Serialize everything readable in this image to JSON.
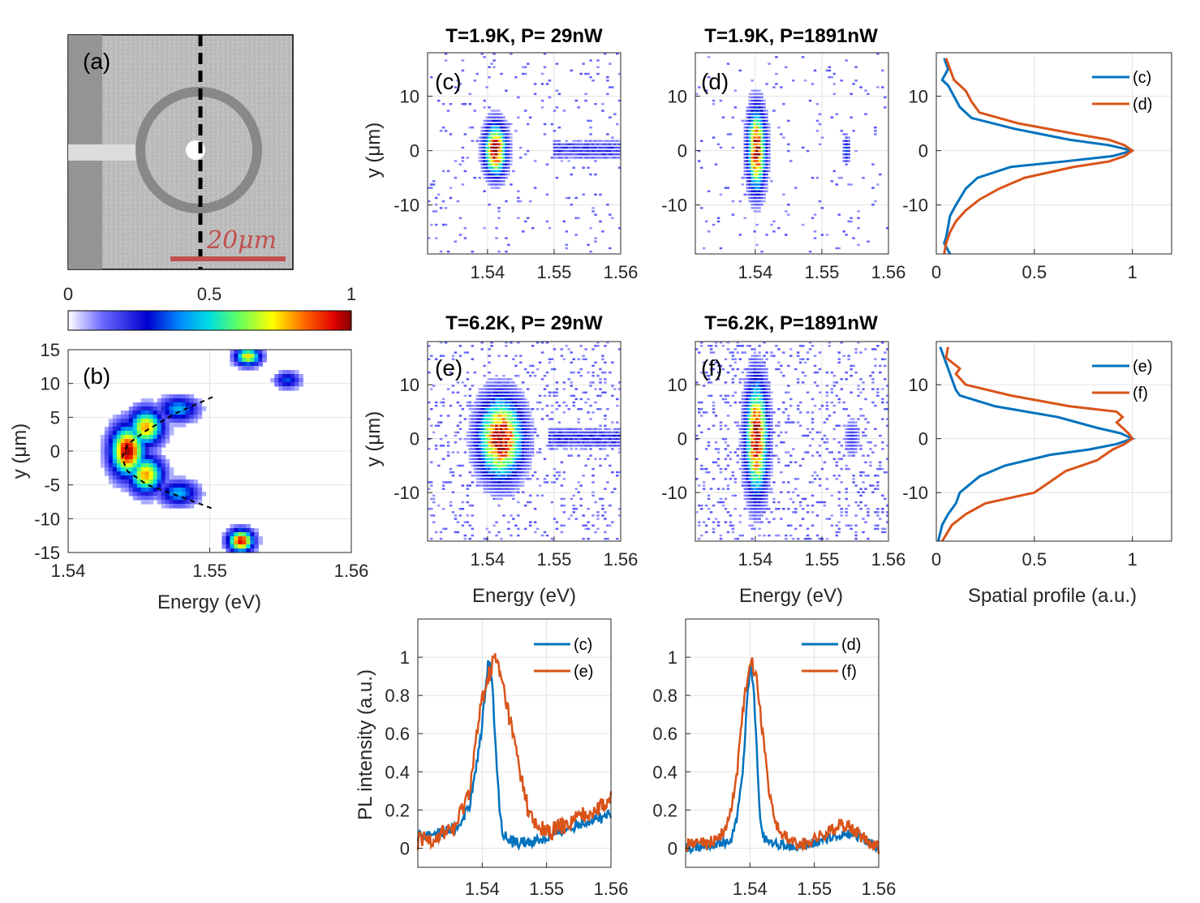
{
  "chart_data": [
    {
      "panel": "(a)",
      "type": "image",
      "label": "(a)",
      "scale_bar_text": "20μm"
    },
    {
      "panel": "colorbar",
      "type": "colorbar",
      "ticks": [
        "0",
        "0.5",
        "1"
      ],
      "range": [
        0,
        1
      ]
    },
    {
      "panel": "(b)",
      "type": "heatmap",
      "label": "(b)",
      "xlabel": "Energy (eV)",
      "ylabel": "y (μm)",
      "xlim": [
        1.54,
        1.56
      ],
      "ylim": [
        -15,
        15
      ],
      "xticks": [
        "1.54",
        "1.55",
        "1.56"
      ],
      "yticks": [
        "15",
        "10",
        "5",
        "0",
        "-5",
        "-10",
        "-15"
      ],
      "dashed_fit": {
        "x": [
          1.5502,
          1.5475,
          1.5455,
          1.5442,
          1.5438,
          1.5442,
          1.5456,
          1.5476,
          1.5502
        ],
        "y": [
          8,
          5.5,
          3,
          1,
          -1,
          -3,
          -5,
          -6.5,
          -8.5
        ]
      },
      "blobs": [
        {
          "x": 1.5442,
          "y": 0,
          "sx": 0.0008,
          "sy": 2.5,
          "a": 1.0
        },
        {
          "x": 1.5455,
          "y": 3.5,
          "sx": 0.0008,
          "sy": 1.8,
          "a": 0.8
        },
        {
          "x": 1.5455,
          "y": -3.5,
          "sx": 0.0008,
          "sy": 1.8,
          "a": 0.8
        },
        {
          "x": 1.5478,
          "y": 6.2,
          "sx": 0.0009,
          "sy": 1.2,
          "a": 0.45
        },
        {
          "x": 1.5478,
          "y": -6.2,
          "sx": 0.0009,
          "sy": 1.2,
          "a": 0.45
        },
        {
          "x": 1.5527,
          "y": 14,
          "sx": 0.0006,
          "sy": 0.9,
          "a": 0.75
        },
        {
          "x": 1.5555,
          "y": 10.5,
          "sx": 0.0006,
          "sy": 0.8,
          "a": 0.35
        },
        {
          "x": 1.5522,
          "y": -13.3,
          "sx": 0.0006,
          "sy": 1.1,
          "a": 0.95
        }
      ]
    },
    {
      "panel": "(c)",
      "type": "heatmap",
      "title": "T=1.9K, P=  29nW",
      "label": "(c)",
      "xlim": [
        1.531,
        1.56
      ],
      "ylim": [
        -19,
        18
      ],
      "xticks": [
        "1.54",
        "1.55",
        "1.56"
      ],
      "yticks": [
        "10",
        "0",
        "-10"
      ],
      "ylabel": "y (μm)",
      "center": [
        1.5412,
        0
      ],
      "width_e": 0.0011,
      "width_y": 3.2
    },
    {
      "panel": "(d)",
      "type": "heatmap",
      "title": "T=1.9K, P=1891nW",
      "label": "(d)",
      "xlim": [
        1.531,
        1.56
      ],
      "ylim": [
        -19,
        18
      ],
      "xticks": [
        "1.54",
        "1.55",
        "1.56"
      ],
      "yticks": [
        "10",
        "0",
        "-10"
      ],
      "center": [
        1.5402,
        0
      ],
      "width_e": 0.0009,
      "width_y": 5.0
    },
    {
      "panel": "(e)",
      "type": "heatmap",
      "title": "T=6.2K, P=  29nW",
      "label": "(e)",
      "xlim": [
        1.531,
        1.56
      ],
      "ylim": [
        -19,
        18
      ],
      "xticks": [
        "1.54",
        "1.55",
        "1.56"
      ],
      "yticks": [
        "10",
        "0",
        "-10"
      ],
      "xlabel": "Energy (eV)",
      "ylabel": "y (μm)",
      "center": [
        1.542,
        0
      ],
      "width_e": 0.0022,
      "width_y": 5.0
    },
    {
      "panel": "(f)",
      "type": "heatmap",
      "title": "T=6.2K, P=1891nW",
      "label": "(f)",
      "xlim": [
        1.531,
        1.56
      ],
      "ylim": [
        -19,
        18
      ],
      "xticks": [
        "1.54",
        "1.55",
        "1.56"
      ],
      "yticks": [
        "10",
        "0",
        "-10"
      ],
      "xlabel": "Energy (eV)",
      "center": [
        1.5402,
        0
      ],
      "width_e": 0.0011,
      "width_y": 7.0
    },
    {
      "panel": "spatial-top",
      "type": "line",
      "xlim": [
        0,
        1.2
      ],
      "ylim": [
        -19,
        18
      ],
      "xticks": [
        "0",
        "0.5",
        "1"
      ],
      "yticks": [
        "10",
        "0",
        "-10"
      ],
      "series": [
        {
          "name": "(c)",
          "color": "#0072BD",
          "y": [
            17,
            15,
            13,
            12,
            10,
            8,
            6,
            4,
            2,
            1,
            0,
            -1,
            -2,
            -3,
            -5,
            -7,
            -10,
            -12,
            -14,
            -16,
            -17,
            -19
          ],
          "x": [
            0.04,
            0.06,
            0.03,
            0.06,
            0.09,
            0.12,
            0.18,
            0.4,
            0.68,
            0.88,
            1.0,
            0.9,
            0.65,
            0.38,
            0.21,
            0.15,
            0.1,
            0.07,
            0.06,
            0.05,
            0.04,
            0.07
          ]
        },
        {
          "name": "(d)",
          "color": "#D95319",
          "y": [
            17,
            15,
            13,
            11,
            9,
            7,
            5,
            3,
            2,
            1,
            0,
            -1,
            -2,
            -3,
            -5,
            -7,
            -9,
            -11,
            -13,
            -15,
            -17,
            -19
          ],
          "x": [
            0.05,
            0.07,
            0.09,
            0.15,
            0.18,
            0.22,
            0.42,
            0.72,
            0.88,
            0.96,
            1.0,
            0.96,
            0.88,
            0.7,
            0.45,
            0.32,
            0.22,
            0.15,
            0.1,
            0.07,
            0.05,
            0.04
          ]
        }
      ]
    },
    {
      "panel": "spatial-bottom",
      "type": "line",
      "xlabel": "Spatial profile (a.u.)",
      "xlim": [
        0,
        1.2
      ],
      "ylim": [
        -19,
        18
      ],
      "xticks": [
        "0",
        "0.5",
        "1"
      ],
      "yticks": [
        "10",
        "0",
        "-10"
      ],
      "series": [
        {
          "name": "(e)",
          "color": "#0072BD",
          "y": [
            17,
            15,
            13,
            11,
            9,
            8,
            6,
            4,
            2,
            1,
            0,
            -1,
            -2,
            -3,
            -5,
            -7,
            -10,
            -12,
            -14,
            -16,
            -19
          ],
          "x": [
            0.02,
            0.04,
            0.06,
            0.08,
            0.1,
            0.12,
            0.3,
            0.62,
            0.82,
            0.94,
            1.0,
            0.92,
            0.78,
            0.58,
            0.35,
            0.22,
            0.12,
            0.1,
            0.06,
            0.03,
            0.01
          ]
        },
        {
          "name": "(f)",
          "color": "#D95319",
          "y": [
            17,
            15,
            13,
            12,
            10,
            8,
            6,
            5,
            4,
            3,
            1,
            0,
            -1,
            -2,
            -4,
            -6,
            -8,
            -10,
            -12,
            -14,
            -16,
            -19
          ],
          "x": [
            0.06,
            0.05,
            0.12,
            0.1,
            0.15,
            0.38,
            0.68,
            0.92,
            0.95,
            0.92,
            0.98,
            1.0,
            0.96,
            0.9,
            0.82,
            0.66,
            0.58,
            0.5,
            0.25,
            0.15,
            0.08,
            0.03
          ]
        }
      ]
    },
    {
      "panel": "pl-left",
      "type": "line",
      "ylabel": "PL intensity (a.u.)",
      "xlim": [
        1.53,
        1.56
      ],
      "ylim": [
        -0.1,
        1.2
      ],
      "xticks": [
        "1.54",
        "1.55",
        "1.56"
      ],
      "yticks": [
        "0",
        "0.2",
        "0.4",
        "0.6",
        "0.8",
        "1"
      ],
      "series": [
        {
          "name": "(c)",
          "color": "#0072BD",
          "noise": 0.03,
          "x": [
            1.53,
            1.533,
            1.536,
            1.538,
            1.539,
            1.54,
            1.5405,
            1.541,
            1.5415,
            1.542,
            1.5425,
            1.543,
            1.544,
            1.545,
            1.547,
            1.55,
            1.553,
            1.556,
            1.56
          ],
          "y": [
            0.06,
            0.08,
            0.1,
            0.22,
            0.4,
            0.65,
            0.85,
            1.0,
            0.88,
            0.6,
            0.3,
            0.1,
            0.04,
            0.03,
            0.03,
            0.05,
            0.1,
            0.14,
            0.17
          ]
        },
        {
          "name": "(e)",
          "color": "#D95319",
          "noise": 0.05,
          "x": [
            1.53,
            1.533,
            1.536,
            1.538,
            1.539,
            1.54,
            1.541,
            1.542,
            1.543,
            1.544,
            1.545,
            1.546,
            1.547,
            1.548,
            1.55,
            1.553,
            1.556,
            1.56
          ],
          "y": [
            0.03,
            0.06,
            0.12,
            0.3,
            0.55,
            0.78,
            0.9,
            1.0,
            0.88,
            0.72,
            0.55,
            0.38,
            0.22,
            0.12,
            0.08,
            0.12,
            0.18,
            0.25
          ]
        }
      ]
    },
    {
      "panel": "pl-right",
      "type": "line",
      "xlim": [
        1.53,
        1.56
      ],
      "ylim": [
        -0.1,
        1.2
      ],
      "xticks": [
        "1.54",
        "1.55",
        "1.56"
      ],
      "yticks": [
        "0",
        "0.2",
        "0.4",
        "0.6",
        "0.8",
        "1"
      ],
      "series": [
        {
          "name": "(d)",
          "color": "#0072BD",
          "noise": 0.025,
          "x": [
            1.53,
            1.534,
            1.537,
            1.538,
            1.539,
            1.5395,
            1.54,
            1.5405,
            1.541,
            1.5415,
            1.542,
            1.544,
            1.548,
            1.552,
            1.556,
            1.56
          ],
          "y": [
            0.0,
            0.02,
            0.04,
            0.15,
            0.45,
            0.75,
            0.95,
            0.88,
            0.55,
            0.2,
            0.05,
            0.02,
            0.01,
            0.05,
            0.08,
            0.0
          ]
        },
        {
          "name": "(f)",
          "color": "#D95319",
          "noise": 0.035,
          "x": [
            1.53,
            1.534,
            1.536,
            1.537,
            1.538,
            1.539,
            1.54,
            1.541,
            1.542,
            1.543,
            1.544,
            1.546,
            1.548,
            1.551,
            1.553,
            1.555,
            1.557,
            1.56
          ],
          "y": [
            0.01,
            0.03,
            0.08,
            0.18,
            0.4,
            0.75,
            1.0,
            0.9,
            0.6,
            0.3,
            0.12,
            0.04,
            0.02,
            0.06,
            0.1,
            0.13,
            0.07,
            0.0
          ]
        }
      ]
    }
  ]
}
